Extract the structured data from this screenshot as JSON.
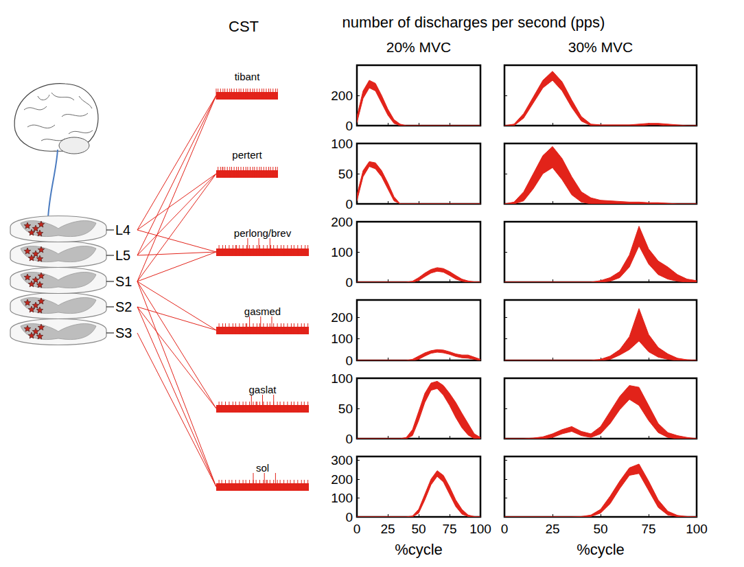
{
  "header": {
    "cst_label": "CST",
    "value_label": "number of discharges per second (pps)",
    "columns": [
      "20% MVC",
      "30% MVC"
    ]
  },
  "diagram": {
    "segments": [
      "L4",
      "L5",
      "S1",
      "S2",
      "S3"
    ],
    "muscles": [
      {
        "label": "tibant",
        "segments": [
          "L4",
          "L5",
          "S1"
        ]
      },
      {
        "label": "pertert",
        "segments": [
          "L4",
          "L5",
          "S1"
        ]
      },
      {
        "label": "perlong/brev",
        "segments": [
          "L4",
          "L5",
          "S1"
        ]
      },
      {
        "label": "gasmed",
        "segments": [
          "S1",
          "S2"
        ]
      },
      {
        "label": "gaslat",
        "segments": [
          "S1",
          "S2"
        ]
      },
      {
        "label": "sol",
        "segments": [
          "S1",
          "S2",
          "S3"
        ]
      }
    ]
  },
  "chart_data": [
    {
      "type": "band",
      "color": "#e2231a",
      "grid": false,
      "tick_labels": "y",
      "x": [
        0,
        5,
        10,
        15,
        20,
        25,
        30,
        35,
        40,
        45,
        50,
        55,
        60,
        65,
        70,
        75,
        80,
        85,
        90,
        95,
        100
      ],
      "upper": [
        60,
        230,
        300,
        280,
        200,
        110,
        40,
        10,
        0,
        0,
        0,
        0,
        0,
        0,
        0,
        0,
        0,
        0,
        0,
        0,
        0
      ],
      "lower": [
        20,
        180,
        250,
        230,
        150,
        70,
        15,
        0,
        0,
        0,
        0,
        0,
        0,
        0,
        0,
        0,
        0,
        0,
        0,
        0,
        0
      ],
      "xlim": [
        0,
        100
      ],
      "xticks": [
        0,
        25,
        50,
        75,
        100
      ],
      "ylim": [
        0,
        400
      ],
      "yticks": [
        0,
        200
      ]
    },
    {
      "type": "band",
      "color": "#e2231a",
      "grid": false,
      "tick_labels": false,
      "x": [
        0,
        5,
        10,
        15,
        20,
        25,
        30,
        35,
        40,
        45,
        50,
        55,
        60,
        65,
        70,
        75,
        80,
        85,
        90,
        95,
        100
      ],
      "upper": [
        0,
        10,
        80,
        190,
        300,
        360,
        290,
        170,
        60,
        10,
        5,
        5,
        5,
        5,
        10,
        15,
        15,
        10,
        5,
        0,
        0
      ],
      "lower": [
        0,
        0,
        50,
        150,
        250,
        300,
        230,
        120,
        30,
        0,
        0,
        0,
        0,
        0,
        0,
        5,
        5,
        0,
        0,
        0,
        0
      ],
      "xlim": [
        0,
        100
      ],
      "xticks": [
        0,
        25,
        50,
        75,
        100
      ],
      "ylim": [
        0,
        400
      ],
      "yticks": [
        0,
        200
      ]
    },
    {
      "type": "band",
      "color": "#e2231a",
      "grid": false,
      "tick_labels": "y",
      "x": [
        0,
        5,
        10,
        15,
        20,
        25,
        30,
        35,
        40,
        45,
        50,
        55,
        60,
        65,
        70,
        75,
        80,
        85,
        90,
        95,
        100
      ],
      "upper": [
        15,
        55,
        70,
        68,
        55,
        35,
        12,
        0,
        0,
        0,
        0,
        0,
        0,
        0,
        0,
        0,
        0,
        0,
        0,
        0,
        0
      ],
      "lower": [
        5,
        45,
        62,
        58,
        45,
        25,
        5,
        0,
        0,
        0,
        0,
        0,
        0,
        0,
        0,
        0,
        0,
        0,
        0,
        0,
        0
      ],
      "xlim": [
        0,
        100
      ],
      "xticks": [
        0,
        25,
        50,
        75,
        100
      ],
      "ylim": [
        0,
        100
      ],
      "yticks": [
        0,
        50,
        100
      ]
    },
    {
      "type": "band",
      "color": "#e2231a",
      "grid": false,
      "tick_labels": false,
      "x": [
        0,
        5,
        10,
        15,
        20,
        25,
        30,
        35,
        40,
        45,
        50,
        55,
        60,
        65,
        70,
        75,
        80,
        85,
        90,
        95,
        100
      ],
      "upper": [
        0,
        3,
        20,
        50,
        80,
        95,
        75,
        45,
        20,
        10,
        6,
        5,
        4,
        3,
        3,
        2,
        2,
        1,
        0,
        0,
        0
      ],
      "lower": [
        0,
        0,
        5,
        25,
        50,
        60,
        40,
        15,
        3,
        0,
        0,
        0,
        0,
        0,
        0,
        0,
        0,
        0,
        0,
        0,
        0
      ],
      "xlim": [
        0,
        100
      ],
      "xticks": [
        0,
        25,
        50,
        75,
        100
      ],
      "ylim": [
        0,
        100
      ],
      "yticks": [
        0,
        50,
        100
      ]
    },
    {
      "type": "band",
      "color": "#e2231a",
      "grid": false,
      "tick_labels": "y",
      "x": [
        0,
        5,
        10,
        15,
        20,
        25,
        30,
        35,
        40,
        45,
        50,
        55,
        60,
        65,
        70,
        75,
        80,
        85,
        90,
        95,
        100
      ],
      "upper": [
        0,
        0,
        0,
        0,
        0,
        0,
        0,
        0,
        0,
        3,
        15,
        30,
        42,
        48,
        45,
        35,
        22,
        10,
        4,
        1,
        0
      ],
      "lower": [
        0,
        0,
        0,
        0,
        0,
        0,
        0,
        0,
        0,
        0,
        5,
        18,
        30,
        36,
        33,
        22,
        10,
        3,
        0,
        0,
        0
      ],
      "xlim": [
        0,
        100
      ],
      "xticks": [
        0,
        25,
        50,
        75,
        100
      ],
      "ylim": [
        0,
        200
      ],
      "yticks": [
        0,
        100,
        200
      ]
    },
    {
      "type": "band",
      "color": "#e2231a",
      "grid": false,
      "tick_labels": false,
      "x": [
        0,
        5,
        10,
        15,
        20,
        25,
        30,
        35,
        40,
        45,
        50,
        55,
        60,
        65,
        70,
        75,
        80,
        85,
        90,
        95,
        100
      ],
      "upper": [
        0,
        0,
        0,
        0,
        0,
        0,
        0,
        0,
        0,
        0,
        5,
        15,
        35,
        90,
        185,
        110,
        70,
        50,
        25,
        10,
        5
      ],
      "lower": [
        0,
        0,
        0,
        0,
        0,
        0,
        0,
        0,
        0,
        0,
        0,
        3,
        15,
        50,
        120,
        60,
        25,
        10,
        3,
        0,
        0
      ],
      "xlim": [
        0,
        100
      ],
      "xticks": [
        0,
        25,
        50,
        75,
        100
      ],
      "ylim": [
        0,
        200
      ],
      "yticks": [
        0,
        100,
        200
      ]
    },
    {
      "type": "band",
      "color": "#e2231a",
      "grid": false,
      "tick_labels": "y",
      "x": [
        0,
        5,
        10,
        15,
        20,
        25,
        30,
        35,
        40,
        45,
        50,
        55,
        60,
        65,
        70,
        75,
        80,
        85,
        90,
        95,
        100
      ],
      "upper": [
        0,
        0,
        0,
        0,
        0,
        0,
        0,
        0,
        0,
        5,
        20,
        35,
        45,
        50,
        48,
        40,
        30,
        25,
        25,
        15,
        5
      ],
      "lower": [
        0,
        0,
        0,
        0,
        0,
        0,
        0,
        0,
        0,
        0,
        5,
        20,
        33,
        38,
        35,
        28,
        18,
        12,
        10,
        5,
        0
      ],
      "xlim": [
        0,
        100
      ],
      "xticks": [
        0,
        25,
        50,
        75,
        100
      ],
      "ylim": [
        0,
        280
      ],
      "yticks": [
        0,
        100,
        200
      ]
    },
    {
      "type": "band",
      "color": "#e2231a",
      "grid": false,
      "tick_labels": false,
      "x": [
        0,
        5,
        10,
        15,
        20,
        25,
        30,
        35,
        40,
        45,
        50,
        55,
        60,
        65,
        70,
        75,
        80,
        85,
        90,
        95,
        100
      ],
      "upper": [
        0,
        0,
        0,
        0,
        0,
        0,
        0,
        0,
        0,
        0,
        5,
        20,
        50,
        110,
        240,
        120,
        60,
        30,
        10,
        3,
        0
      ],
      "lower": [
        0,
        0,
        0,
        0,
        0,
        0,
        0,
        0,
        0,
        0,
        0,
        5,
        25,
        50,
        90,
        40,
        15,
        5,
        0,
        0,
        0
      ],
      "xlim": [
        0,
        100
      ],
      "xticks": [
        0,
        25,
        50,
        75,
        100
      ],
      "ylim": [
        0,
        280
      ],
      "yticks": [
        0,
        100,
        200
      ]
    },
    {
      "type": "band",
      "color": "#e2231a",
      "grid": false,
      "tick_labels": "y",
      "x": [
        0,
        5,
        10,
        15,
        20,
        25,
        30,
        35,
        40,
        45,
        50,
        55,
        60,
        65,
        70,
        75,
        80,
        85,
        90,
        95,
        100
      ],
      "upper": [
        0,
        0,
        0,
        0,
        0,
        0,
        0,
        0,
        2,
        15,
        45,
        75,
        92,
        95,
        88,
        75,
        60,
        42,
        25,
        8,
        2
      ],
      "lower": [
        0,
        0,
        0,
        0,
        0,
        0,
        0,
        0,
        0,
        5,
        30,
        60,
        80,
        83,
        72,
        55,
        35,
        18,
        6,
        0,
        0
      ],
      "xlim": [
        0,
        100
      ],
      "xticks": [
        0,
        25,
        50,
        75,
        100
      ],
      "ylim": [
        0,
        100
      ],
      "yticks": [
        0,
        50,
        100
      ]
    },
    {
      "type": "band",
      "color": "#e2231a",
      "grid": false,
      "tick_labels": false,
      "x": [
        0,
        5,
        10,
        15,
        20,
        25,
        30,
        35,
        40,
        45,
        50,
        55,
        60,
        65,
        70,
        75,
        80,
        85,
        90,
        95,
        100
      ],
      "upper": [
        0,
        0,
        0,
        1,
        3,
        8,
        15,
        20,
        12,
        8,
        20,
        45,
        70,
        88,
        85,
        55,
        25,
        10,
        5,
        2,
        0
      ],
      "lower": [
        0,
        0,
        0,
        0,
        0,
        2,
        8,
        12,
        5,
        2,
        8,
        25,
        48,
        65,
        55,
        30,
        10,
        2,
        0,
        0,
        0
      ],
      "xlim": [
        0,
        100
      ],
      "xticks": [
        0,
        25,
        50,
        75,
        100
      ],
      "ylim": [
        0,
        100
      ],
      "yticks": [
        0,
        50,
        100
      ]
    },
    {
      "type": "band",
      "color": "#e2231a",
      "grid": false,
      "tick_labels": true,
      "xlabel": "%cycle",
      "x": [
        0,
        5,
        10,
        15,
        20,
        25,
        30,
        35,
        40,
        45,
        50,
        55,
        60,
        65,
        70,
        75,
        80,
        85,
        90,
        95,
        100
      ],
      "upper": [
        0,
        0,
        0,
        0,
        0,
        0,
        0,
        0,
        0,
        5,
        40,
        120,
        200,
        245,
        220,
        160,
        90,
        40,
        10,
        2,
        0
      ],
      "lower": [
        0,
        0,
        0,
        0,
        0,
        0,
        0,
        0,
        0,
        0,
        20,
        90,
        170,
        215,
        185,
        120,
        55,
        15,
        2,
        0,
        0
      ],
      "xlim": [
        0,
        100
      ],
      "xticks": [
        0,
        25,
        50,
        75,
        100
      ],
      "ylim": [
        0,
        320
      ],
      "yticks": [
        0,
        100,
        200,
        300
      ]
    },
    {
      "type": "band",
      "color": "#e2231a",
      "grid": false,
      "tick_labels": "x",
      "xlabel": "%cycle",
      "x": [
        0,
        5,
        10,
        15,
        20,
        25,
        30,
        35,
        40,
        45,
        50,
        55,
        60,
        65,
        70,
        75,
        80,
        85,
        90,
        95,
        100
      ],
      "upper": [
        0,
        0,
        0,
        0,
        0,
        0,
        0,
        0,
        2,
        10,
        40,
        110,
        190,
        260,
        280,
        190,
        90,
        30,
        8,
        2,
        0
      ],
      "lower": [
        0,
        0,
        0,
        0,
        0,
        0,
        0,
        0,
        0,
        2,
        20,
        70,
        150,
        220,
        230,
        140,
        50,
        10,
        2,
        0,
        0
      ],
      "xlim": [
        0,
        100
      ],
      "xticks": [
        0,
        25,
        50,
        75,
        100
      ],
      "ylim": [
        0,
        320
      ],
      "yticks": [
        0,
        100,
        200,
        300
      ]
    }
  ]
}
